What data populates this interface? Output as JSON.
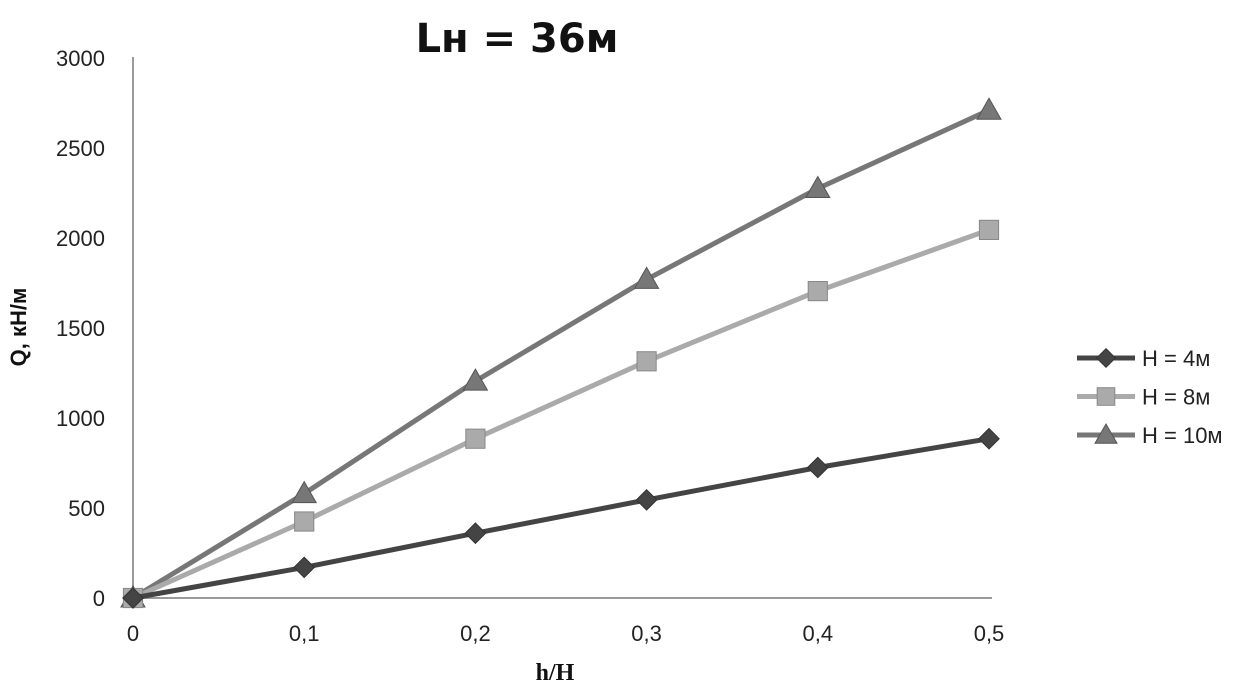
{
  "chart_data": {
    "type": "line",
    "title": "Lн = 36м",
    "xlabel": "h/H",
    "ylabel": "Q, кН/м",
    "x": [
      0,
      0.1,
      0.2,
      0.3,
      0.4,
      0.5
    ],
    "x_tick_labels": [
      "0",
      "0,1",
      "0,2",
      "0,3",
      "0,4",
      "0,5"
    ],
    "ylim": [
      0,
      3000
    ],
    "y_ticks": [
      0,
      500,
      1000,
      1500,
      2000,
      2500,
      3000
    ],
    "y_tick_labels": [
      "0",
      "500",
      "1000",
      "1500",
      "2000",
      "2500",
      "3000"
    ],
    "grid": false,
    "legend_position": "right",
    "series": [
      {
        "name": "H = 4м",
        "marker": "diamond",
        "color": "#444444",
        "values": [
          0,
          170,
          360,
          545,
          725,
          885
        ]
      },
      {
        "name": "H = 8м",
        "marker": "square",
        "color": "#aaaaaa",
        "values": [
          0,
          425,
          885,
          1315,
          1705,
          2045
        ]
      },
      {
        "name": "H = 10м",
        "marker": "triangle",
        "color": "#777777",
        "values": [
          0,
          580,
          1205,
          1770,
          2275,
          2710
        ]
      }
    ]
  }
}
